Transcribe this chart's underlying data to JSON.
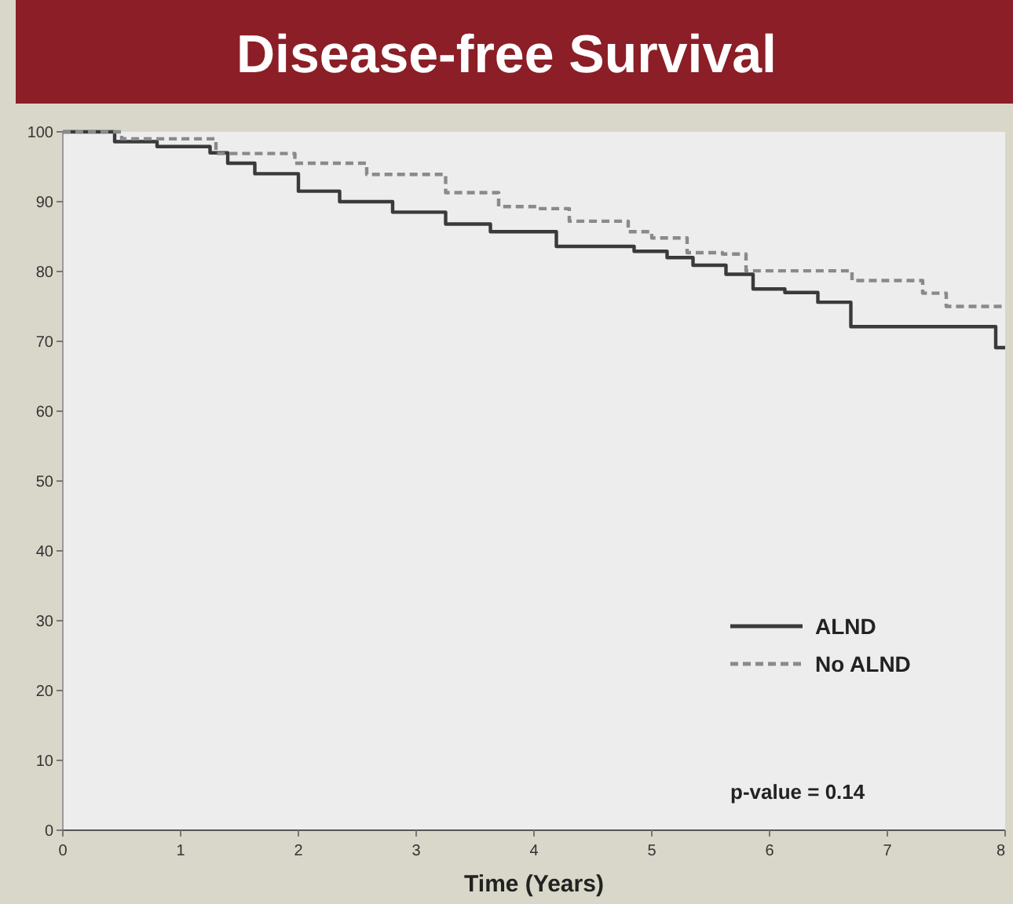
{
  "chart_data": {
    "type": "step",
    "title": "Disease-free Survival",
    "xlabel": "Time (Years)",
    "xlim": [
      0,
      8
    ],
    "xticks": [
      0,
      1,
      2,
      3,
      4,
      5,
      6,
      7,
      8
    ],
    "ylim": [
      0,
      100
    ],
    "yticks": [
      0,
      10,
      20,
      30,
      40,
      50,
      60,
      70,
      80,
      90,
      100
    ],
    "grid": false,
    "legend": "bottom right",
    "annotations": [
      "p-value = 0.14"
    ],
    "series": [
      {
        "name": "ALND",
        "color": "#3a3a3a",
        "line_style": "solid",
        "x": [
          0,
          0.44,
          0.8,
          1.25,
          1.4,
          1.63,
          2.0,
          2.35,
          2.8,
          3.25,
          3.63,
          3.91,
          4.19,
          4.85,
          5.13,
          5.35,
          5.63,
          5.86,
          6.13,
          6.41,
          6.69,
          7.86,
          7.92,
          8
        ],
        "values": [
          100,
          98.6,
          97.9,
          97,
          95.5,
          94,
          91.5,
          90,
          88.5,
          86.8,
          85.7,
          85.7,
          83.6,
          82.9,
          82,
          80.9,
          79.6,
          77.5,
          77,
          75.6,
          72.1,
          72.1,
          69.1,
          69.1
        ]
      },
      {
        "name": "No ALND",
        "color": "#8a8a8a",
        "line_style": "dashed",
        "x": [
          0,
          0.5,
          1.3,
          1.97,
          2.58,
          3.25,
          3.7,
          4.04,
          4.3,
          4.8,
          5.0,
          5.3,
          5.6,
          5.8,
          6.7,
          7.3,
          7.5,
          8
        ],
        "values": [
          100,
          99,
          96.9,
          95.5,
          93.9,
          91.3,
          89.3,
          89,
          87.2,
          85.7,
          84.8,
          82.7,
          82.5,
          80.1,
          78.7,
          76.9,
          75,
          75
        ]
      }
    ]
  }
}
